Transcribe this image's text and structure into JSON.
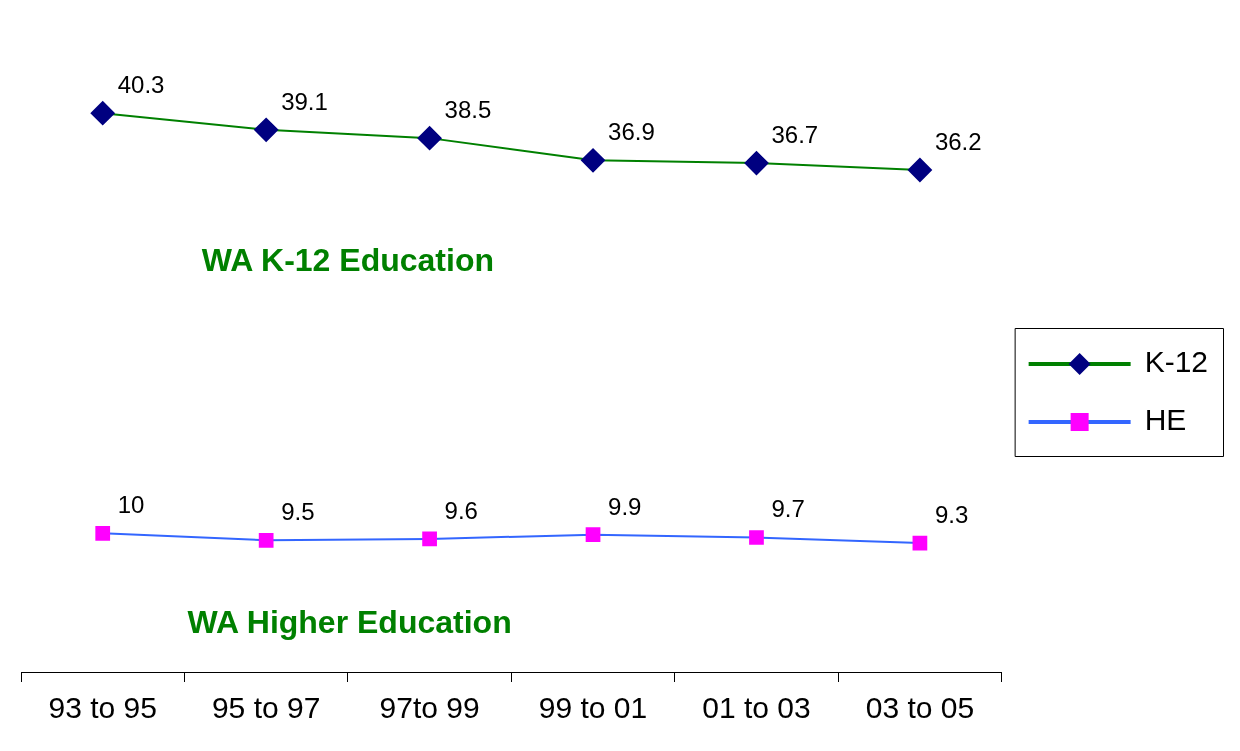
{
  "chart_data": {
    "type": "line",
    "categories": [
      "93 to 95",
      "95 to 97",
      "97to 99",
      "99 to 01",
      "01 to 03",
      "03 to 05"
    ],
    "series": [
      {
        "name": "K-12",
        "color": "#008000",
        "colors": [
          "#000080",
          "#000080",
          "#000080",
          "#000080",
          "#000080",
          "#000080"
        ],
        "marker": "diamond",
        "values": [
          40.3,
          39.1,
          38.5,
          36.9,
          36.7,
          36.2
        ]
      },
      {
        "name": "HE",
        "color": "#3366ff",
        "colors": [
          "#ff00ff",
          "#ff00ff",
          "#ff00ff",
          "#ff00ff",
          "#ff00ff",
          "#ff00ff"
        ],
        "marker": "square",
        "values": [
          10,
          9.5,
          9.6,
          9.9,
          9.7,
          9.3
        ]
      }
    ],
    "data_labels": true,
    "legend": "right",
    "grid": false,
    "tick_labels": "x",
    "line_style": "solid",
    "annotations": [
      "WA K-12 Education",
      "WA Higher Education"
    ]
  }
}
